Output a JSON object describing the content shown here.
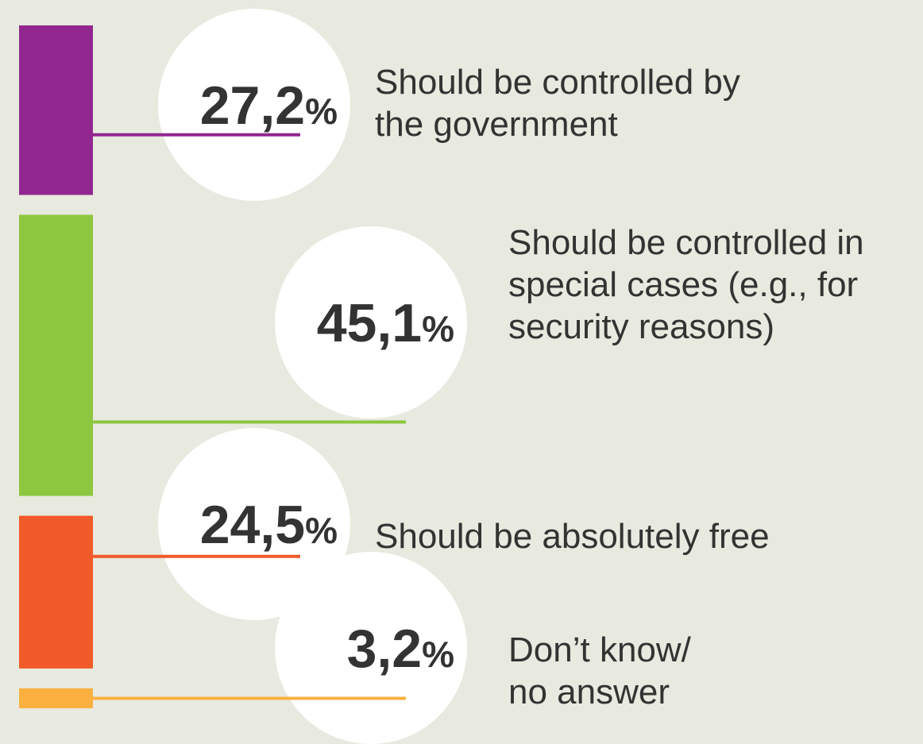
{
  "chart_data": {
    "type": "bar",
    "orientation": "stacked-vertical",
    "unit": "%",
    "categories": [
      "Should be controlled by the government",
      "Should be controlled in special cases (e.g., for security reasons)",
      "Should be absolutely free",
      "Don’t know/ no answer"
    ],
    "values": [
      27.2,
      45.1,
      24.5,
      3.2
    ],
    "value_labels": [
      "27,2",
      "45,1",
      "24,5",
      "3,2"
    ],
    "percent_symbol": "%",
    "label_lines": [
      [
        "Should be controlled by",
        "the government"
      ],
      [
        "Should be controlled in",
        "special cases (e.g., for",
        "security reasons)"
      ],
      [
        "Should be absolutely free"
      ],
      [
        "Don’t know/",
        "no answer"
      ]
    ],
    "colors": [
      "#92278f",
      "#8dc63f",
      "#f15a29",
      "#fbb040"
    ],
    "grid": false,
    "legend": "none"
  }
}
